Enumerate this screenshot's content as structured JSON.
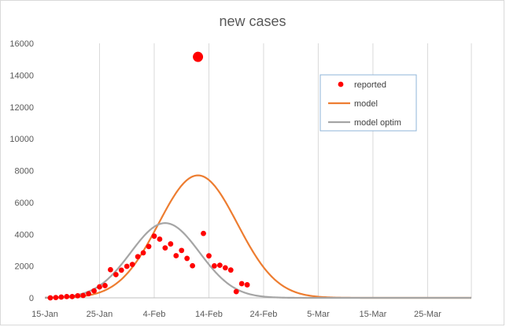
{
  "chart_data": {
    "type": "scatter",
    "title": "new cases",
    "xlabel": "",
    "ylabel": "",
    "x_start_date": "2020-01-15",
    "x_tick_labels": [
      "15-Jan",
      "25-Jan",
      "4-Feb",
      "14-Feb",
      "24-Feb",
      "5-Mar",
      "15-Mar",
      "25-Mar"
    ],
    "x_range_days": [
      0,
      78
    ],
    "y_ticks": [
      0,
      2000,
      4000,
      6000,
      8000,
      10000,
      12000,
      14000,
      16000
    ],
    "ylim": [
      0,
      16000
    ],
    "grid": "vertical",
    "legend_position": "upper right",
    "series": [
      {
        "name": "reported",
        "kind": "scatter",
        "color": "#ff0000",
        "points": [
          {
            "x": "2020-01-16",
            "y": 0
          },
          {
            "x": "2020-01-17",
            "y": 20
          },
          {
            "x": "2020-01-18",
            "y": 50
          },
          {
            "x": "2020-01-19",
            "y": 80
          },
          {
            "x": "2020-01-20",
            "y": 80
          },
          {
            "x": "2020-01-21",
            "y": 130
          },
          {
            "x": "2020-01-22",
            "y": 150
          },
          {
            "x": "2020-01-23",
            "y": 260
          },
          {
            "x": "2020-01-24",
            "y": 440
          },
          {
            "x": "2020-01-25",
            "y": 690
          },
          {
            "x": "2020-01-26",
            "y": 770
          },
          {
            "x": "2020-01-27",
            "y": 1770
          },
          {
            "x": "2020-01-28",
            "y": 1460
          },
          {
            "x": "2020-01-29",
            "y": 1740
          },
          {
            "x": "2020-01-30",
            "y": 1980
          },
          {
            "x": "2020-01-31",
            "y": 2100
          },
          {
            "x": "2020-02-01",
            "y": 2590
          },
          {
            "x": "2020-02-02",
            "y": 2830
          },
          {
            "x": "2020-02-03",
            "y": 3230
          },
          {
            "x": "2020-02-04",
            "y": 3880
          },
          {
            "x": "2020-02-05",
            "y": 3690
          },
          {
            "x": "2020-02-06",
            "y": 3140
          },
          {
            "x": "2020-02-07",
            "y": 3390
          },
          {
            "x": "2020-02-08",
            "y": 2650
          },
          {
            "x": "2020-02-09",
            "y": 2980
          },
          {
            "x": "2020-02-10",
            "y": 2480
          },
          {
            "x": "2020-02-11",
            "y": 2020
          },
          {
            "x": "2020-02-12",
            "y": 15150,
            "size": "large"
          },
          {
            "x": "2020-02-13",
            "y": 4050
          },
          {
            "x": "2020-02-14",
            "y": 2640
          },
          {
            "x": "2020-02-15",
            "y": 2010
          },
          {
            "x": "2020-02-16",
            "y": 2050
          },
          {
            "x": "2020-02-17",
            "y": 1890
          },
          {
            "x": "2020-02-18",
            "y": 1750
          },
          {
            "x": "2020-02-19",
            "y": 390
          },
          {
            "x": "2020-02-20",
            "y": 890
          },
          {
            "x": "2020-02-21",
            "y": 820
          }
        ]
      },
      {
        "name": "model",
        "kind": "line",
        "color": "#ed7d31",
        "shape": "gaussian",
        "peak_date": "2020-02-12",
        "peak_value": 7700,
        "sd_days": 7.2
      },
      {
        "name": "model optim",
        "kind": "line",
        "color": "#a5a5a5",
        "shape": "gaussian",
        "peak_date": "2020-02-06",
        "peak_value": 4700,
        "sd_days": 6.3
      }
    ]
  }
}
